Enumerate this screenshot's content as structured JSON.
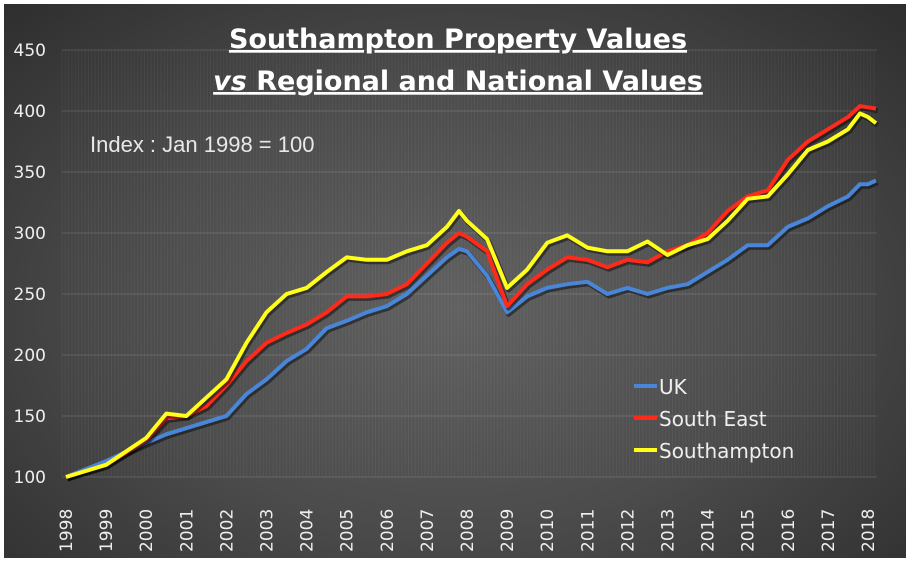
{
  "chart_data": {
    "type": "line",
    "title": [
      "Southampton Property Values",
      "vs Regional and National Values"
    ],
    "title_italic_word": "vs",
    "annotation": "Index : Jan 1998 = 100",
    "xlabel": "",
    "ylabel": "",
    "xlim": [
      1998,
      2018.2
    ],
    "ylim": [
      100,
      450
    ],
    "yticks": [
      100,
      150,
      200,
      250,
      300,
      350,
      400,
      450
    ],
    "xticks": [
      "1998",
      "1999",
      "2000",
      "2001",
      "2002",
      "2003",
      "2004",
      "2005",
      "2006",
      "2007",
      "2008",
      "2009",
      "2010",
      "2011",
      "2012",
      "2013",
      "2014",
      "2015",
      "2016",
      "2017",
      "2018"
    ],
    "grid": true,
    "legend": "bottom-right",
    "x": [
      1998,
      1999,
      2000,
      2000.5,
      2001,
      2001.5,
      2002,
      2002.5,
      2003,
      2003.5,
      2004,
      2004.5,
      2005,
      2005.5,
      2006,
      2006.5,
      2007,
      2007.5,
      2007.8,
      2008,
      2008.5,
      2009,
      2009.5,
      2010,
      2010.5,
      2011,
      2011.5,
      2012,
      2012.5,
      2013,
      2013.5,
      2014,
      2014.5,
      2015,
      2015.5,
      2016,
      2016.5,
      2017,
      2017.5,
      2017.8,
      2018,
      2018.2
    ],
    "series": [
      {
        "name": "UK",
        "color": "#4a86d8",
        "values": [
          100,
          113,
          128,
          135,
          140,
          145,
          150,
          168,
          180,
          195,
          205,
          222,
          228,
          235,
          240,
          250,
          265,
          280,
          287,
          285,
          265,
          235,
          248,
          255,
          258,
          260,
          250,
          255,
          250,
          255,
          258,
          268,
          278,
          290,
          290,
          305,
          312,
          322,
          330,
          340,
          340,
          343
        ]
      },
      {
        "name": "South East",
        "color": "#ff2a1a",
        "values": [
          100,
          110,
          130,
          148,
          150,
          158,
          175,
          195,
          210,
          218,
          225,
          235,
          248,
          248,
          250,
          258,
          275,
          292,
          300,
          297,
          285,
          240,
          258,
          270,
          280,
          278,
          272,
          278,
          276,
          285,
          290,
          300,
          318,
          330,
          335,
          360,
          375,
          385,
          395,
          404,
          403,
          402
        ]
      },
      {
        "name": "Southampton",
        "color": "#ffff1a",
        "values": [
          100,
          110,
          132,
          152,
          150,
          165,
          180,
          210,
          235,
          250,
          255,
          268,
          280,
          278,
          278,
          285,
          290,
          305,
          318,
          310,
          295,
          255,
          270,
          292,
          298,
          288,
          285,
          285,
          293,
          282,
          290,
          295,
          310,
          328,
          330,
          348,
          368,
          375,
          385,
          398,
          395,
          390
        ]
      }
    ]
  }
}
